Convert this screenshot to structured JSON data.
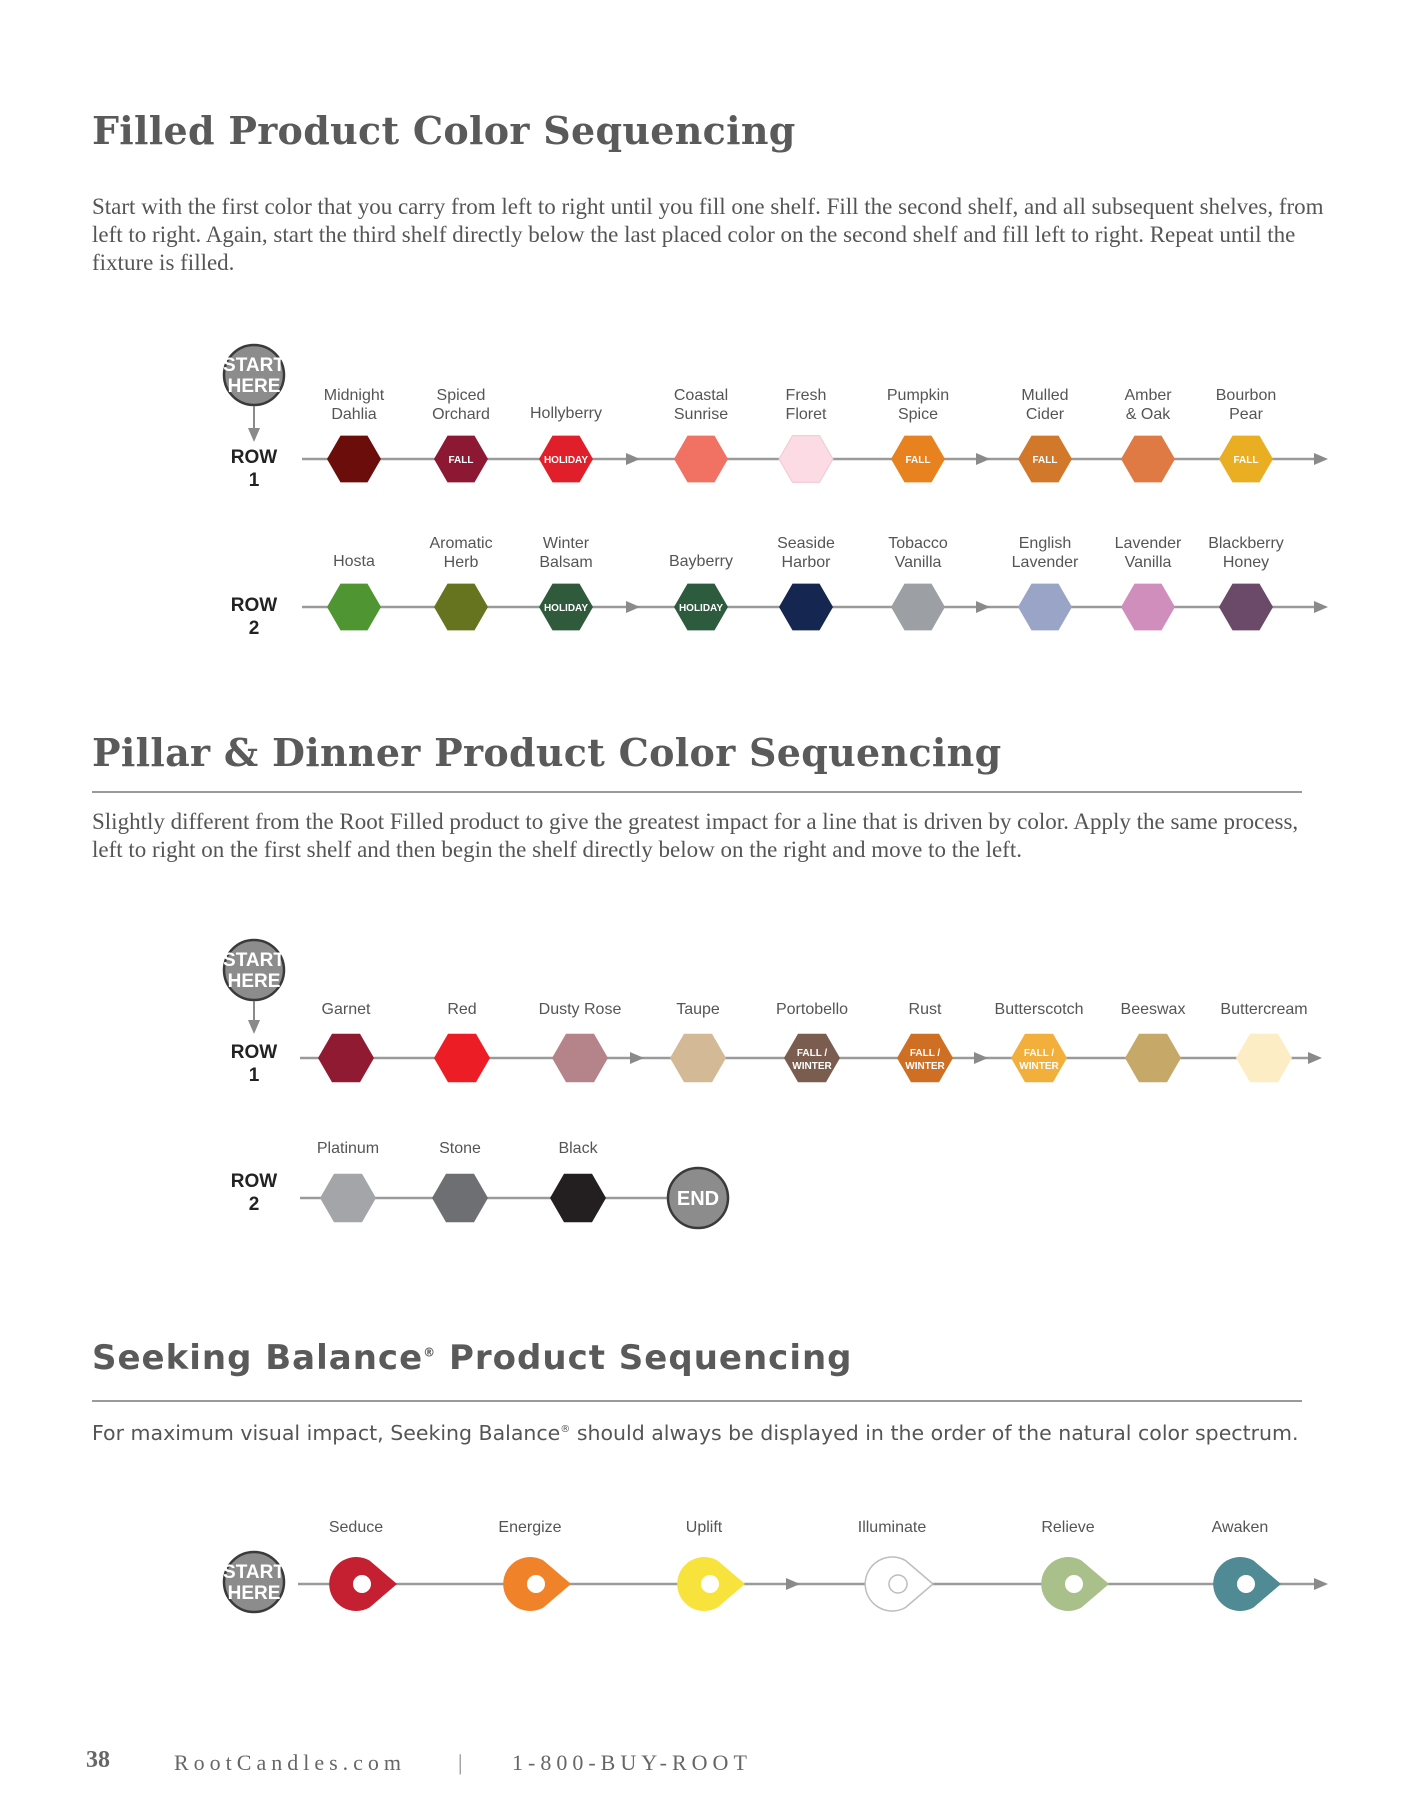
{
  "section1": {
    "title": "Filled Product Color Sequencing",
    "text": "Start with the first color that you carry from left to right until you fill one shelf. Fill the second shelf, and all subsequent shelves, from left to right. Again, start the third shelf directly below the last placed color on the second shelf and fill left to right. Repeat until the fixture is filled.",
    "start_label": [
      "START",
      "HERE"
    ],
    "rows": [
      {
        "label": [
          "ROW",
          "1"
        ],
        "items": [
          {
            "name": [
              "Midnight",
              "Dahlia"
            ],
            "color": "#6b0d0a",
            "tag": ""
          },
          {
            "name": [
              "Spiced",
              "Orchard"
            ],
            "color": "#8c1833",
            "tag": "FALL"
          },
          {
            "name": [
              "Hollyberry"
            ],
            "color": "#e01f2a",
            "tag": "HOLIDAY"
          },
          {
            "name": [
              "Coastal",
              "Sunrise"
            ],
            "color": "#f17162",
            "tag": ""
          },
          {
            "name": [
              "Fresh",
              "Floret"
            ],
            "color": "#fcdbe5",
            "tag": ""
          },
          {
            "name": [
              "Pumpkin",
              "Spice"
            ],
            "color": "#e8821e",
            "tag": "FALL"
          },
          {
            "name": [
              "Mulled",
              "Cider"
            ],
            "color": "#d1782b",
            "tag": "FALL"
          },
          {
            "name": [
              "Amber",
              "& Oak"
            ],
            "color": "#e07a45",
            "tag": ""
          },
          {
            "name": [
              "Bourbon",
              "Pear"
            ],
            "color": "#e9ae22",
            "tag": "FALL"
          }
        ]
      },
      {
        "label": [
          "ROW",
          "2"
        ],
        "items": [
          {
            "name": [
              "Hosta"
            ],
            "color": "#4f9633",
            "tag": ""
          },
          {
            "name": [
              "Aromatic",
              "Herb"
            ],
            "color": "#66731f",
            "tag": ""
          },
          {
            "name": [
              "Winter",
              "Balsam"
            ],
            "color": "#2f5a3c",
            "tag": "HOLIDAY"
          },
          {
            "name": [
              "Bayberry"
            ],
            "color": "#2d5b3d",
            "tag": "HOLIDAY"
          },
          {
            "name": [
              "Seaside",
              "Harbor"
            ],
            "color": "#152650",
            "tag": ""
          },
          {
            "name": [
              "Tobacco",
              "Vanilla"
            ],
            "color": "#9c9fa3",
            "tag": ""
          },
          {
            "name": [
              "English",
              "Lavender"
            ],
            "color": "#9aa4c7",
            "tag": ""
          },
          {
            "name": [
              "Lavender",
              "Vanilla"
            ],
            "color": "#d08ebd",
            "tag": ""
          },
          {
            "name": [
              "Blackberry",
              "Honey"
            ],
            "color": "#6a4a68",
            "tag": ""
          }
        ]
      }
    ]
  },
  "section2": {
    "title": "Pillar & Dinner Product Color Sequencing",
    "text": "Slightly different from the Root Filled product to give the greatest impact for a  line that is driven by color. Apply the same process, left to right on the first shelf and then begin the shelf directly below on the right and move to the left.",
    "start_label": [
      "START",
      "HERE"
    ],
    "end_label": "END",
    "rows": [
      {
        "label": [
          "ROW",
          "1"
        ],
        "items": [
          {
            "name": [
              "Garnet"
            ],
            "color": "#8f1a31",
            "tag": []
          },
          {
            "name": [
              "Red"
            ],
            "color": "#ed1d25",
            "tag": []
          },
          {
            "name": [
              "Dusty Rose"
            ],
            "color": "#b5848b",
            "tag": []
          },
          {
            "name": [
              "Taupe"
            ],
            "color": "#d3b996",
            "tag": []
          },
          {
            "name": [
              "Portobello"
            ],
            "color": "#7a5d4f",
            "tag": [
              "FALL /",
              "WINTER"
            ]
          },
          {
            "name": [
              "Rust"
            ],
            "color": "#cf6f24",
            "tag": [
              "FALL /",
              "WINTER"
            ]
          },
          {
            "name": [
              "Butterscotch"
            ],
            "color": "#f2af3b",
            "tag": [
              "FALL /",
              "WINTER"
            ]
          },
          {
            "name": [
              "Beeswax"
            ],
            "color": "#c6a868",
            "tag": []
          },
          {
            "name": [
              "Buttercream"
            ],
            "color": "#fdedc5",
            "tag": []
          }
        ]
      },
      {
        "label": [
          "ROW",
          "2"
        ],
        "items": [
          {
            "name": [
              "Platinum"
            ],
            "color": "#a3a5a8",
            "tag": []
          },
          {
            "name": [
              "Stone"
            ],
            "color": "#6e6f72",
            "tag": []
          },
          {
            "name": [
              "Black"
            ],
            "color": "#231f20",
            "tag": []
          }
        ]
      }
    ]
  },
  "section3": {
    "title_main": "Seeking Balance",
    "title_reg": "®",
    "title_rest": " Product Sequencing",
    "text_a": "For maximum visual impact, Seeking Balance",
    "text_reg": "®",
    "text_b": " should always be displayed in the order of the natural color spectrum.",
    "start_label": [
      "START",
      "HERE"
    ],
    "items": [
      {
        "name": "Seduce",
        "color": "#c42032"
      },
      {
        "name": "Energize",
        "color": "#f0822a"
      },
      {
        "name": "Uplift",
        "color": "#f7e33c"
      },
      {
        "name": "Illuminate",
        "color": "#ffffff"
      },
      {
        "name": "Relieve",
        "color": "#a9c08a"
      },
      {
        "name": "Awaken",
        "color": "#4f8a95"
      }
    ]
  },
  "footer": {
    "page_number": "38",
    "site": "RootCandles.com",
    "separator": "|",
    "phone": "1-800-BUY-ROOT"
  }
}
